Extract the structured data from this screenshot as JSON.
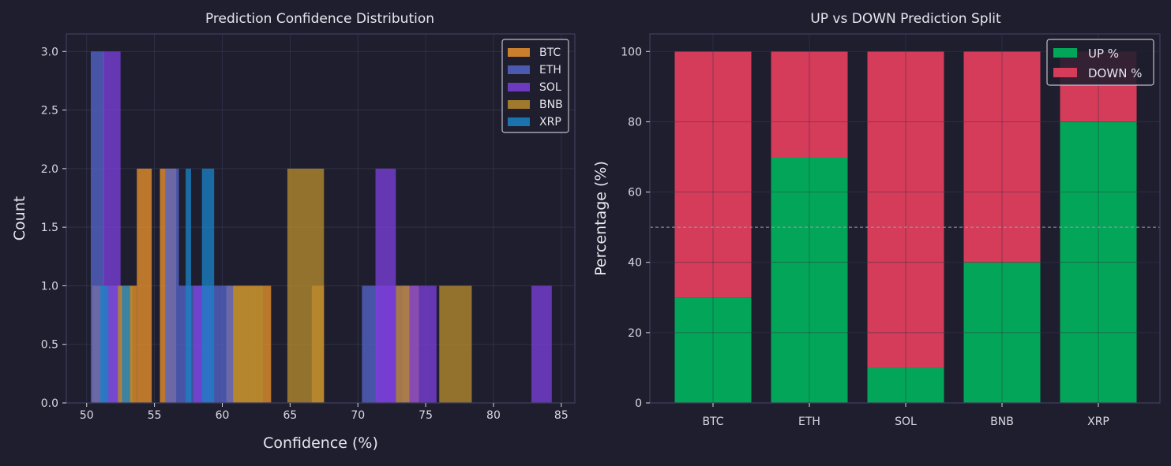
{
  "theme": {
    "background": "#1e1e2e",
    "plot_background": "#1e1e2e",
    "spine_color": "#3c3c5a",
    "grid_color": "#34344c",
    "text_color": "#e6e6ee",
    "tick_color": "#d8d8e2"
  },
  "chart_data": [
    {
      "type": "histogram",
      "title": "Prediction Confidence Distribution",
      "xlabel": "Confidence (%)",
      "ylabel": "Count",
      "xlim": [
        48.5,
        86.0
      ],
      "ylim": [
        0,
        3.15
      ],
      "x_ticks": [
        50,
        55,
        60,
        65,
        70,
        75,
        80,
        85
      ],
      "y_ticks": [
        0.0,
        0.5,
        1.0,
        1.5,
        2.0,
        2.5,
        3.0
      ],
      "grid": true,
      "legend_position": "top-right",
      "series": [
        {
          "name": "BTC",
          "color": "#e8912a",
          "bars": [
            {
              "x0": 50.4,
              "x1": 51.5,
              "count": 1
            },
            {
              "x0": 51.5,
              "x1": 52.6,
              "count": 1
            },
            {
              "x0": 52.6,
              "x1": 53.7,
              "count": 1
            },
            {
              "x0": 53.7,
              "x1": 54.8,
              "count": 2
            },
            {
              "x0": 55.4,
              "x1": 56.6,
              "count": 2
            },
            {
              "x0": 60.3,
              "x1": 61.5,
              "count": 1
            },
            {
              "x0": 61.5,
              "x1": 62.7,
              "count": 1
            },
            {
              "x0": 62.7,
              "x1": 63.6,
              "count": 1
            },
            {
              "x0": 66.6,
              "x1": 67.5,
              "count": 1
            },
            {
              "x0": 73.3,
              "x1": 74.5,
              "count": 1
            }
          ]
        },
        {
          "name": "ETH",
          "color": "#5564c8",
          "bars": [
            {
              "x0": 50.3,
              "x1": 51.3,
              "count": 3
            },
            {
              "x0": 51.3,
              "x1": 52.3,
              "count": 1
            },
            {
              "x0": 55.8,
              "x1": 56.8,
              "count": 2
            },
            {
              "x0": 56.8,
              "x1": 57.8,
              "count": 1
            },
            {
              "x0": 57.8,
              "x1": 58.8,
              "count": 1
            },
            {
              "x0": 58.8,
              "x1": 59.8,
              "count": 1
            },
            {
              "x0": 59.8,
              "x1": 60.8,
              "count": 1
            },
            {
              "x0": 70.3,
              "x1": 71.4,
              "count": 1
            }
          ]
        },
        {
          "name": "SOL",
          "color": "#7a3fd8",
          "bars": [
            {
              "x0": 51.2,
              "x1": 52.5,
              "count": 3
            },
            {
              "x0": 57.9,
              "x1": 59.2,
              "count": 1
            },
            {
              "x0": 71.3,
              "x1": 72.8,
              "count": 2
            },
            {
              "x0": 71.3,
              "x1": 72.8,
              "count": 1
            },
            {
              "x0": 72.8,
              "x1": 74.3,
              "count": 1
            },
            {
              "x0": 74.3,
              "x1": 75.8,
              "count": 1
            },
            {
              "x0": 82.8,
              "x1": 84.3,
              "count": 1
            }
          ]
        },
        {
          "name": "BNB",
          "color": "#b58a2e",
          "bars": [
            {
              "x0": 52.3,
              "x1": 53.4,
              "count": 1
            },
            {
              "x0": 60.8,
              "x1": 61.9,
              "count": 1
            },
            {
              "x0": 61.9,
              "x1": 63.0,
              "count": 1
            },
            {
              "x0": 64.8,
              "x1": 67.5,
              "count": 2
            },
            {
              "x0": 72.8,
              "x1": 73.8,
              "count": 1
            },
            {
              "x0": 76.0,
              "x1": 78.4,
              "count": 1
            }
          ]
        },
        {
          "name": "XRP",
          "color": "#1a82c4",
          "bars": [
            {
              "x0": 51.0,
              "x1": 51.6,
              "count": 1
            },
            {
              "x0": 52.6,
              "x1": 53.2,
              "count": 1
            },
            {
              "x0": 57.3,
              "x1": 57.7,
              "count": 2
            },
            {
              "x0": 58.5,
              "x1": 59.4,
              "count": 2
            }
          ]
        }
      ]
    },
    {
      "type": "bar",
      "stacked": true,
      "title": "UP vs DOWN Prediction Split",
      "xlabel": "",
      "ylabel": "Percentage (%)",
      "categories": [
        "BTC",
        "ETH",
        "SOL",
        "BNB",
        "XRP"
      ],
      "ylim": [
        0,
        105
      ],
      "y_ticks": [
        0,
        20,
        40,
        60,
        80,
        100
      ],
      "reference_line": 50,
      "grid": true,
      "legend_position": "top-right",
      "series": [
        {
          "name": "UP %",
          "color": "#03a658",
          "values": [
            30,
            70,
            10,
            40,
            80
          ]
        },
        {
          "name": "DOWN %",
          "color": "#d43c5a",
          "values": [
            70,
            30,
            90,
            60,
            20
          ]
        }
      ]
    }
  ]
}
